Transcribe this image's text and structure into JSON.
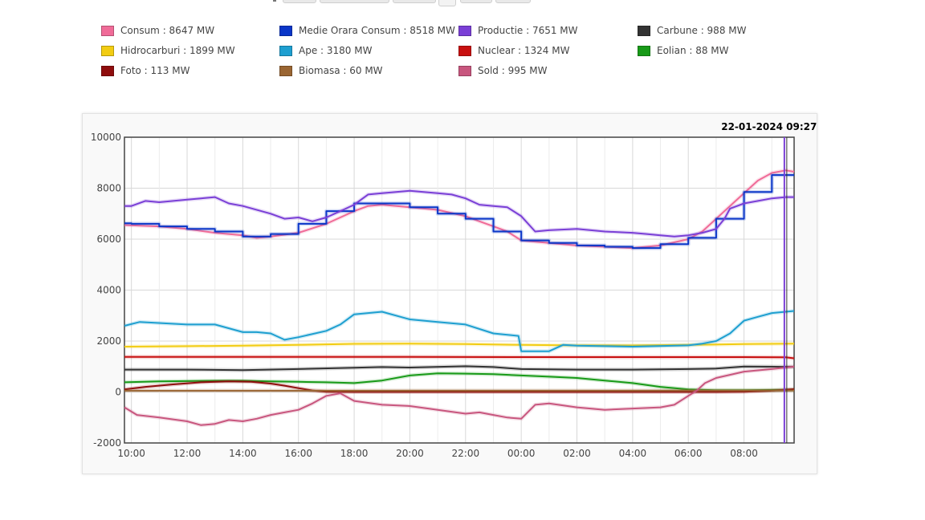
{
  "legend": [
    {
      "label": "Consum : 8647 MW",
      "color": "#f06b98"
    },
    {
      "label": "Medie Orara Consum : 8518 MW",
      "color": "#0a36c8"
    },
    {
      "label": "Productie : 7651 MW",
      "color": "#7a3fd6"
    },
    {
      "label": "Carbune : 988 MW",
      "color": "#333333"
    },
    {
      "label": "Hidrocarburi : 1899 MW",
      "color": "#f2cc12"
    },
    {
      "label": "Ape : 3180 MW",
      "color": "#1e9fd0"
    },
    {
      "label": "Nuclear : 1324 MW",
      "color": "#c81010"
    },
    {
      "label": "Eolian : 88 MW",
      "color": "#189a18"
    },
    {
      "label": "Foto : 113 MW",
      "color": "#8f0d0d"
    },
    {
      "label": "Biomasa : 60 MW",
      "color": "#9a6532"
    },
    {
      "label": "Sold : 995 MW",
      "color": "#c8567e"
    }
  ],
  "hover_timestamp": "22-01-2024 09:27:14",
  "chart_data": {
    "type": "line",
    "x_ticks": [
      "10:00",
      "12:00",
      "14:00",
      "16:00",
      "18:00",
      "20:00",
      "22:00",
      "00:00",
      "02:00",
      "04:00",
      "06:00",
      "08:00"
    ],
    "y_ticks": [
      "10000",
      "8000",
      "6000",
      "4000",
      "2000",
      "0",
      "-2000"
    ],
    "ylim": [
      -2000,
      10000
    ],
    "xlim_hours": [
      9.75,
      33.8
    ],
    "grid": true,
    "cursor_time_hours": 33.45,
    "series": [
      {
        "name": "Nuclear",
        "color": "#c81010",
        "x": [
          9.75,
          14,
          20,
          24,
          28,
          32,
          33.5,
          33.8
        ],
        "y": [
          1380,
          1380,
          1375,
          1370,
          1370,
          1370,
          1360,
          1324
        ]
      },
      {
        "name": "Hidrocarburi",
        "color": "#f2cc12",
        "x": [
          9.75,
          12,
          14,
          16,
          18,
          20,
          22,
          24,
          26,
          28,
          30,
          32,
          33.8
        ],
        "y": [
          1780,
          1800,
          1820,
          1850,
          1890,
          1900,
          1880,
          1850,
          1830,
          1830,
          1850,
          1880,
          1899
        ]
      },
      {
        "name": "Carbune",
        "color": "#333333",
        "x": [
          9.75,
          12,
          14,
          16,
          18,
          19,
          20,
          22,
          23,
          24,
          26,
          28,
          30,
          31,
          32,
          33.8
        ],
        "y": [
          880,
          880,
          860,
          900,
          950,
          980,
          960,
          1010,
          980,
          900,
          880,
          880,
          900,
          920,
          1000,
          988
        ]
      },
      {
        "name": "Eolian",
        "color": "#189a18",
        "x": [
          9.75,
          11,
          13,
          14,
          15,
          16,
          17,
          18,
          19,
          20,
          21,
          22,
          23,
          24,
          25,
          26,
          27,
          28,
          29,
          30,
          31,
          32,
          33.8
        ],
        "y": [
          380,
          420,
          440,
          440,
          420,
          400,
          380,
          350,
          450,
          650,
          730,
          720,
          700,
          650,
          600,
          550,
          450,
          350,
          200,
          100,
          70,
          70,
          88
        ]
      },
      {
        "name": "Foto",
        "color": "#8f0d0d",
        "x": [
          9.75,
          10.5,
          11.5,
          12.5,
          13.5,
          14.3,
          15,
          15.5,
          16,
          16.5,
          17,
          18,
          22,
          28,
          30,
          31,
          32,
          33,
          33.8
        ],
        "y": [
          100,
          200,
          300,
          380,
          420,
          400,
          330,
          250,
          150,
          60,
          10,
          0,
          0,
          0,
          0,
          0,
          10,
          50,
          113
        ]
      },
      {
        "name": "Biomasa",
        "color": "#9a6532",
        "x": [
          9.75,
          20,
          33.8
        ],
        "y": [
          50,
          55,
          60
        ]
      },
      {
        "name": "Ape",
        "color": "#1e9fd0",
        "x": [
          9.75,
          10.3,
          12,
          13,
          14,
          14.5,
          15,
          15.5,
          16,
          17,
          17.5,
          18,
          19,
          20,
          21,
          22,
          23,
          23.9,
          24,
          25,
          25.5,
          26,
          28,
          30,
          30.5,
          31,
          31.5,
          32,
          32.5,
          33,
          33.8
        ],
        "y": [
          2600,
          2750,
          2650,
          2650,
          2350,
          2350,
          2300,
          2050,
          2150,
          2400,
          2650,
          3050,
          3150,
          2850,
          2750,
          2650,
          2300,
          2200,
          1600,
          1600,
          1850,
          1820,
          1780,
          1830,
          1900,
          2000,
          2300,
          2800,
          2950,
          3100,
          3180
        ]
      },
      {
        "name": "Sold",
        "color": "#c8567e",
        "x": [
          9.75,
          10.2,
          11,
          12,
          12.5,
          13,
          13.5,
          14,
          14.5,
          15,
          15.5,
          16,
          16.5,
          17,
          17.5,
          18,
          19,
          20,
          21,
          22,
          22.5,
          23,
          23.5,
          24,
          24.5,
          25,
          26,
          27,
          28,
          29,
          29.5,
          30,
          30.3,
          30.6,
          31,
          32,
          33,
          33.8
        ],
        "y": [
          -600,
          -900,
          -1000,
          -1150,
          -1300,
          -1250,
          -1100,
          -1150,
          -1050,
          -900,
          -800,
          -700,
          -450,
          -150,
          -50,
          -350,
          -500,
          -550,
          -700,
          -850,
          -800,
          -900,
          -1000,
          -1050,
          -500,
          -450,
          -600,
          -700,
          -650,
          -600,
          -500,
          -150,
          50,
          350,
          550,
          800,
          900,
          995
        ]
      },
      {
        "name": "Consum",
        "color": "#f06b98",
        "x": [
          9.75,
          11,
          12,
          13,
          14,
          14.5,
          15,
          16,
          17,
          18,
          18.5,
          19,
          20,
          21,
          22,
          22.5,
          23,
          23.5,
          24,
          25,
          26,
          27,
          28,
          29,
          30,
          30.5,
          31,
          31.5,
          32,
          32.5,
          33,
          33.5,
          33.8
        ],
        "y": [
          6550,
          6500,
          6400,
          6250,
          6150,
          6050,
          6100,
          6250,
          6600,
          7100,
          7300,
          7350,
          7250,
          7150,
          6900,
          6700,
          6500,
          6300,
          5950,
          5850,
          5750,
          5700,
          5650,
          5750,
          6000,
          6300,
          6800,
          7300,
          7800,
          8300,
          8600,
          8700,
          8647
        ]
      },
      {
        "name": "Medie Orara Consum",
        "color": "#0a36c8",
        "steps": true,
        "x": [
          9.75,
          10,
          11,
          12,
          13,
          14,
          15,
          16,
          17,
          18,
          19,
          20,
          21,
          22,
          23,
          24,
          25,
          26,
          27,
          28,
          29,
          30,
          31,
          32,
          33
        ],
        "y": [
          6620,
          6600,
          6500,
          6400,
          6300,
          6100,
          6200,
          6600,
          7100,
          7400,
          7400,
          7250,
          7000,
          6800,
          6300,
          5950,
          5850,
          5750,
          5700,
          5650,
          5800,
          6050,
          6800,
          7850,
          8518
        ]
      },
      {
        "name": "Productie",
        "color": "#7a3fd6",
        "x": [
          9.75,
          10,
          10.5,
          11,
          12,
          12.5,
          13,
          13.5,
          14,
          15,
          15.5,
          16,
          16.5,
          17,
          17.5,
          18,
          18.5,
          19,
          19.5,
          20,
          21,
          21.5,
          22,
          22.5,
          23,
          23.5,
          24,
          24.5,
          25,
          26,
          27,
          28,
          28.5,
          29,
          29.5,
          30,
          30.5,
          31,
          31.3,
          31.5,
          32,
          32.5,
          33,
          33.5,
          33.8
        ],
        "y": [
          7300,
          7300,
          7500,
          7450,
          7550,
          7600,
          7650,
          7400,
          7300,
          7000,
          6800,
          6850,
          6700,
          6850,
          7100,
          7350,
          7750,
          7800,
          7850,
          7900,
          7800,
          7750,
          7600,
          7350,
          7300,
          7250,
          6900,
          6300,
          6350,
          6400,
          6300,
          6250,
          6200,
          6150,
          6100,
          6150,
          6250,
          6400,
          6800,
          7200,
          7400,
          7500,
          7600,
          7650,
          7651
        ]
      }
    ]
  }
}
